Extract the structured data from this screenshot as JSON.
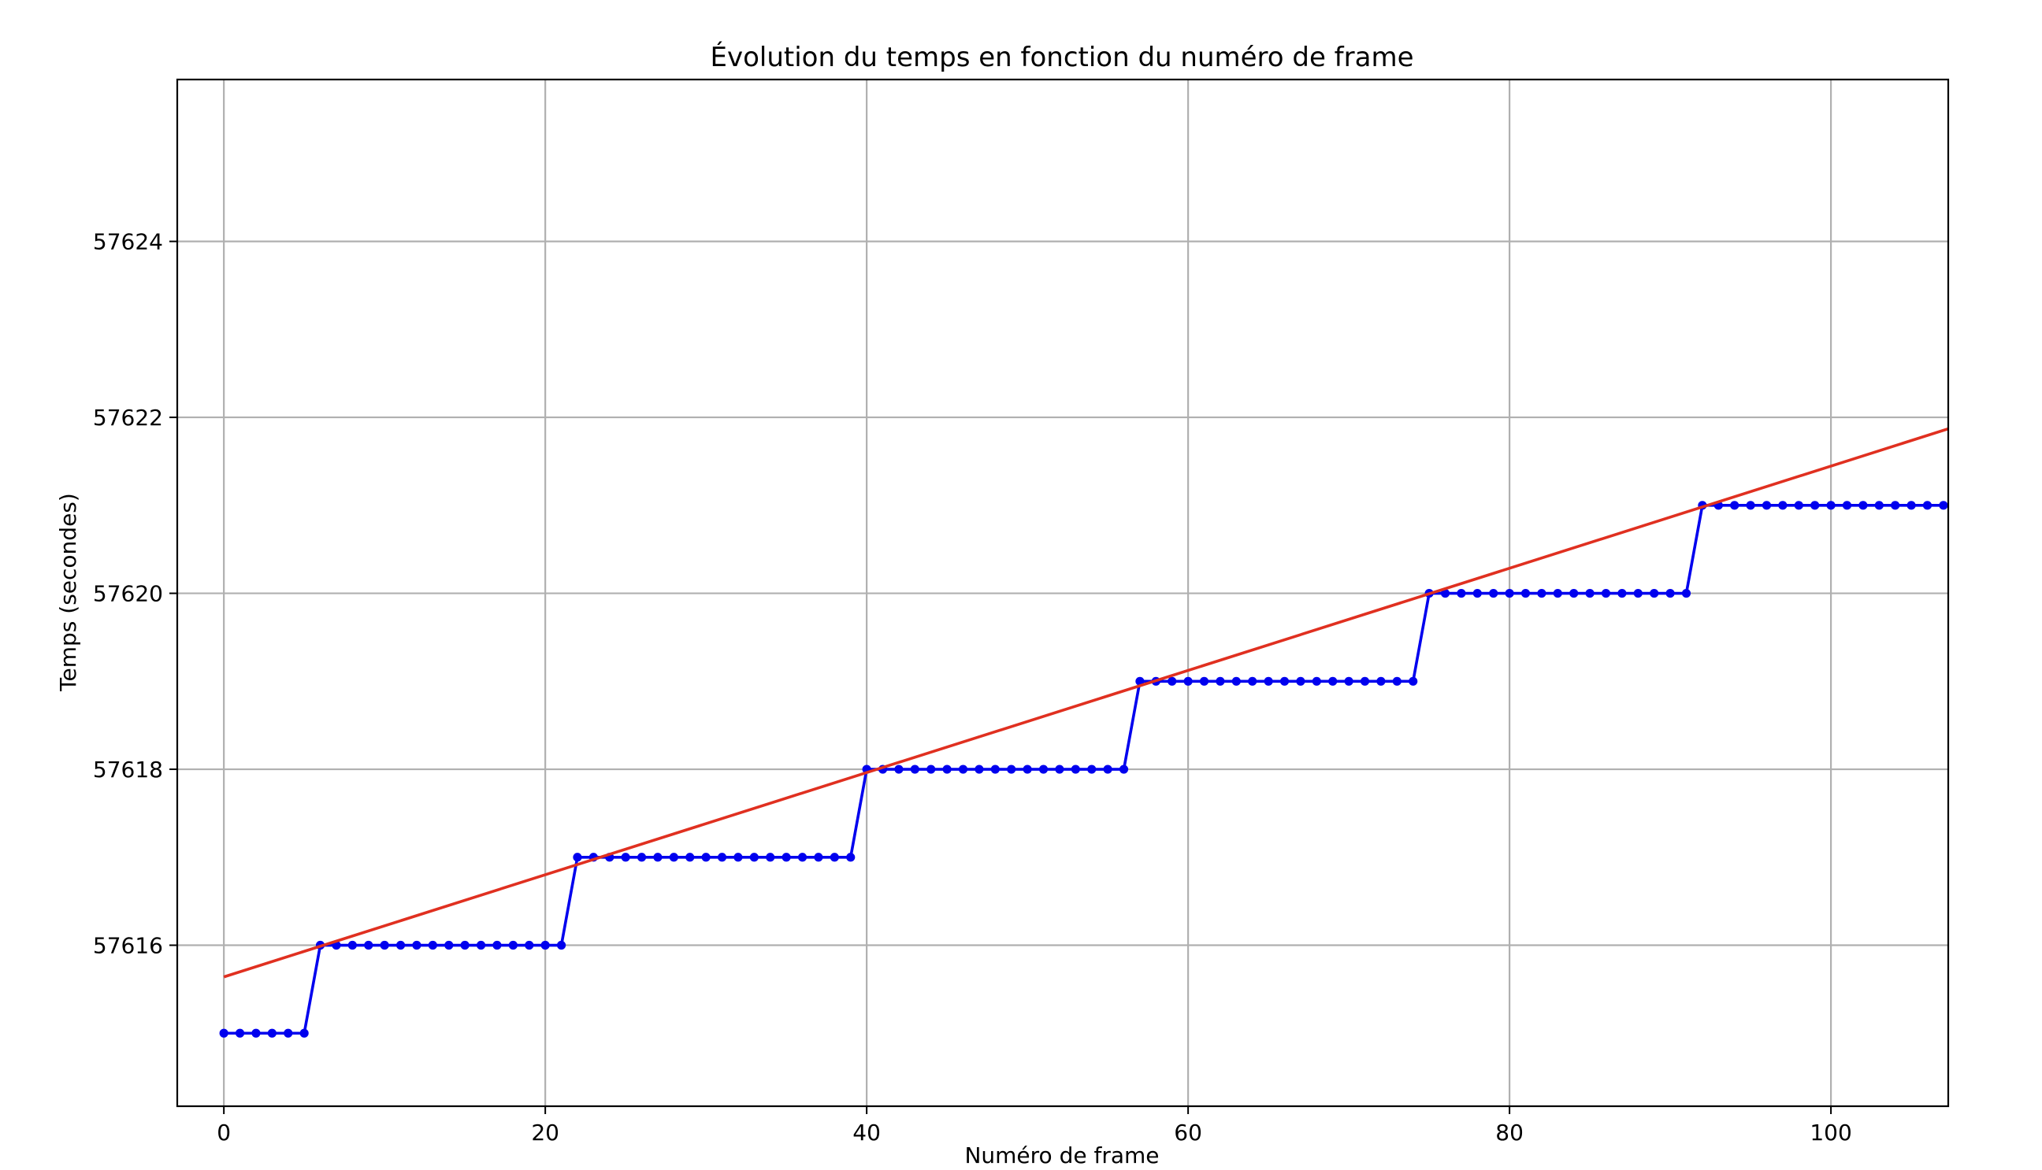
{
  "chart_data": {
    "type": "line",
    "title": "Évolution du temps en fonction du numéro de frame",
    "xlabel": "Numéro de frame",
    "ylabel": "Temps (secondes)",
    "xlim": [
      -2.9,
      107.3
    ],
    "ylim": [
      57614.17,
      57625.84
    ],
    "xticks": [
      0,
      20,
      40,
      60,
      80,
      100
    ],
    "yticks": [
      57616,
      57618,
      57620,
      57622,
      57624
    ],
    "grid": true,
    "series": [
      {
        "kind": "steps",
        "color": "#0000ee",
        "marker": "circle",
        "steps": [
          {
            "from": 0,
            "to": 5,
            "value": 57615
          },
          {
            "from": 6,
            "to": 21,
            "value": 57616
          },
          {
            "from": 22,
            "to": 39,
            "value": 57617
          },
          {
            "from": 40,
            "to": 56,
            "value": 57618
          },
          {
            "from": 57,
            "to": 74,
            "value": 57619
          },
          {
            "from": 75,
            "to": 91,
            "value": 57620
          },
          {
            "from": 92,
            "to": 107,
            "value": 57621
          }
        ]
      },
      {
        "kind": "fit-line",
        "color": "#e03020",
        "x": [
          0,
          107.3
        ],
        "y": [
          57615.64,
          57621.87
        ]
      }
    ]
  }
}
